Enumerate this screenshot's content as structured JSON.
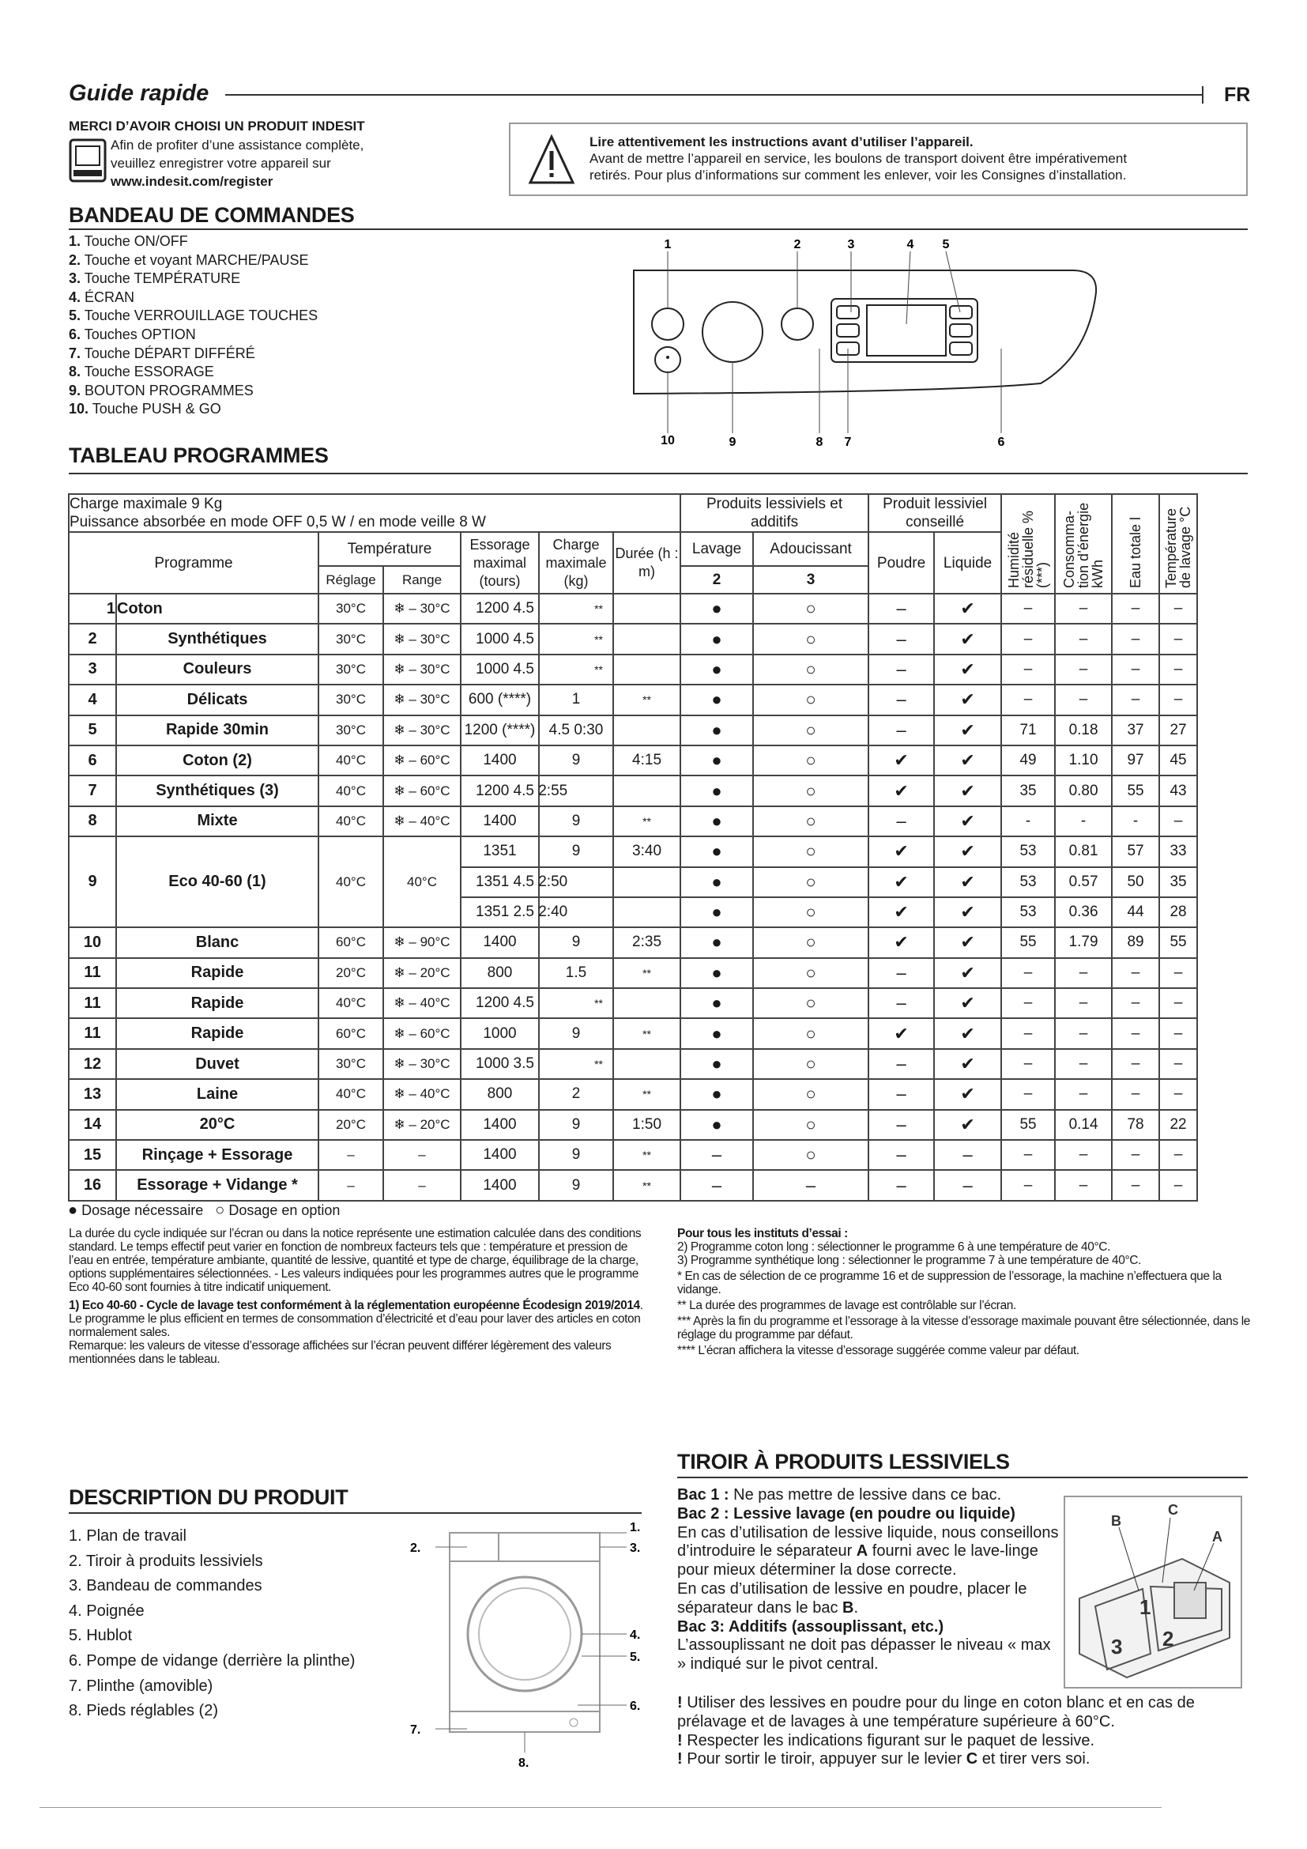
{
  "header": {
    "title": "Guide rapide",
    "lang": "FR"
  },
  "welcome": {
    "title": "MERCI D’AVOIR CHOISI UN PRODUIT INDESIT",
    "line1": "Afin de profiter d’une assistance complète,",
    "line2": "veuillez enregistrer votre appareil sur",
    "url": "www.indesit.com/register",
    "icon": "computer-monitor-icon"
  },
  "warning": {
    "icon": "warning-triangle-icon",
    "title": "Lire attentivement les instructions avant d’utiliser l’appareil.",
    "line1": "Avant de mettre l’appareil en service, les boulons de transport doivent être impérativement",
    "line2": "retirés. Pour plus d’informations sur comment les enlever, voir les Consignes d’installation."
  },
  "control_panel": {
    "title": "BANDEAU DE COMMANDES",
    "items": [
      {
        "n": "1.",
        "label": "Touche ON/OFF"
      },
      {
        "n": "2.",
        "label": "Touche et voyant MARCHE/PAUSE"
      },
      {
        "n": "3.",
        "label": "Touche TEMPÉRATURE"
      },
      {
        "n": "4.",
        "label": "ÉCRAN"
      },
      {
        "n": "5.",
        "label": "Touche    VERROUILLAGE TOUCHES"
      },
      {
        "n": "6.",
        "label": "Touches OPTION"
      },
      {
        "n": "7.",
        "label": "Touche DÉPART DIFFÉRÉ"
      },
      {
        "n": "8.",
        "label": "Touche ESSORAGE"
      },
      {
        "n": "9.",
        "label": "BOUTON PROGRAMMES"
      },
      {
        "n": "10.",
        "label": "Touche PUSH & GO"
      }
    ],
    "diagram_top": [
      "1",
      "2",
      "3",
      "4",
      "5"
    ],
    "diagram_bottom": [
      "10",
      "9",
      "8",
      "7",
      "6"
    ]
  },
  "programs": {
    "title": "TABLEAU PROGRAMMES",
    "header": {
      "charge": "Charge maximale 9 Kg",
      "power": "Puissance absorbée en mode OFF 0,5 W / en mode veille 8 W",
      "programme": "Programme",
      "temperature": "Température",
      "reglage": "Réglage",
      "range": "Range",
      "essorage": "Essorage maximal (tours)",
      "charge_max": "Charge maximale (kg)",
      "duree": "Durée (h : m)",
      "produits": "Produits lessiviels et additifs",
      "lavage": "Lavage",
      "adoucissant": "Adoucissant",
      "bac2": "2",
      "bac3": "3",
      "conseille": "Produit lessiviel conseillé",
      "poudre": "Poudre",
      "liquide": "Liquide",
      "humidite": "Humidité résiduelle % (***)",
      "energie": "Consomma-tion d’énergie kWh",
      "eau": "Eau totale l",
      "temp_lavage": "Température de lavage °C"
    },
    "rows": [
      [
        "1",
        "Coton",
        "30°C",
        "❄ – 30°C",
        "1200 4.5",
        "**",
        "",
        "●",
        "○",
        "–",
        "✔",
        "–",
        "–",
        "–",
        "–"
      ],
      [
        "2",
        "Synthétiques",
        "30°C",
        "❄ – 30°C",
        "1000 4.5",
        "**",
        "",
        "●",
        "○",
        "–",
        "✔",
        "–",
        "–",
        "–",
        "–"
      ],
      [
        "3",
        "Couleurs",
        "30°C",
        "❄ – 30°C",
        "1000 4.5",
        "**",
        "",
        "●",
        "○",
        "–",
        "✔",
        "–",
        "–",
        "–",
        "–"
      ],
      [
        "4",
        "Délicats",
        "30°C",
        "❄ – 30°C",
        "600 (****)",
        "1",
        "**",
        "●",
        "○",
        "–",
        "✔",
        "–",
        "–",
        "–",
        "–"
      ],
      [
        "5",
        "Rapide 30min",
        "30°C",
        "❄ – 30°C",
        "1200 (****)",
        "4.5 0:30",
        "",
        "●",
        "○",
        "–",
        "✔",
        "71",
        "0.18",
        "37",
        "27"
      ],
      [
        "6",
        "Coton (2)",
        "40°C",
        "❄ – 60°C",
        "1400",
        "9",
        "4:15",
        "●",
        "○",
        "✔",
        "✔",
        "49",
        "1.10",
        "97",
        "45"
      ],
      [
        "7",
        "Synthétiques (3)",
        "40°C",
        "❄ – 60°C",
        "1200 4.5 2:55",
        "",
        "",
        "●",
        "○",
        "✔",
        "✔",
        "35",
        "0.80",
        "55",
        "43"
      ],
      [
        "8",
        "Mixte",
        "40°C",
        "❄ – 40°C",
        "1400",
        "9",
        "**",
        "●",
        "○",
        "–",
        "✔",
        "-",
        "-",
        "-",
        "–"
      ],
      [
        "9",
        "Eco 40-60 (1)",
        "40°C",
        "40°C",
        "1351",
        "9",
        "3:40",
        "●",
        "○",
        "✔",
        "✔",
        "53",
        "0.81",
        "57",
        "33"
      ],
      [
        "",
        "",
        "",
        "",
        "1351 4.5 2:50",
        "",
        "",
        "●",
        "○",
        "✔",
        "✔",
        "53",
        "0.57",
        "50",
        "35"
      ],
      [
        "",
        "",
        "",
        "",
        "1351 2.5 2:40",
        "",
        "",
        "●",
        "○",
        "✔",
        "✔",
        "53",
        "0.36",
        "44",
        "28"
      ],
      [
        "10",
        "Blanc",
        "60°C",
        "❄ – 90°C",
        "1400",
        "9",
        "2:35",
        "●",
        "○",
        "✔",
        "✔",
        "55",
        "1.79",
        "89",
        "55"
      ],
      [
        "11",
        "Rapide",
        "20°C",
        "❄ – 20°C",
        "800",
        "1.5",
        "**",
        "●",
        "○",
        "–",
        "✔",
        "–",
        "–",
        "–",
        "–"
      ],
      [
        "11",
        "Rapide",
        "40°C",
        "❄ – 40°C",
        "1200 4.5",
        "**",
        "",
        "●",
        "○",
        "–",
        "✔",
        "–",
        "–",
        "–",
        "–"
      ],
      [
        "11",
        "Rapide",
        "60°C",
        "❄ – 60°C",
        "1000",
        "9",
        "**",
        "●",
        "○",
        "✔",
        "✔",
        "–",
        "–",
        "–",
        "–"
      ],
      [
        "12",
        "Duvet",
        "30°C",
        "❄ – 30°C",
        "1000 3.5",
        "**",
        "",
        "●",
        "○",
        "–",
        "✔",
        "–",
        "–",
        "–",
        "–"
      ],
      [
        "13",
        "Laine",
        "40°C",
        "❄ – 40°C",
        "800",
        "2",
        "**",
        "●",
        "○",
        "–",
        "✔",
        "–",
        "–",
        "–",
        "–"
      ],
      [
        "14",
        "20°C",
        "20°C",
        "❄ – 20°C",
        "1400",
        "9",
        "1:50",
        "●",
        "○",
        "–",
        "✔",
        "55",
        "0.14",
        "78",
        "22"
      ],
      [
        "15",
        "Rinçage + Essorage",
        "–",
        "–",
        "1400",
        "9",
        "**",
        "–",
        "○",
        "–",
        "–",
        "–",
        "–",
        "–",
        "–"
      ],
      [
        "16",
        "Essorage + Vidange *",
        "–",
        "–",
        "1400",
        "9",
        "**",
        "–",
        "–",
        "–",
        "–",
        "–",
        "–",
        "–",
        "–"
      ]
    ],
    "legend": {
      "required": "Dosage nécessaire",
      "optional": "Dosage en option"
    }
  },
  "notes_left": {
    "p1": "La durée du cycle indiquée sur l’écran ou dans la notice représente une estimation calculée dans des conditions standard. Le temps effectif peut varier en fonction de nombreux facteurs tels que : température et pression de l’eau en entrée, température ambiante, quantité de lessive, quantité et type de charge, équilibrage de la charge, options supplémentaires sélectionnées. - Les valeurs indiquées pour les programmes autres que le programme Eco 40-60 sont fournies à titre indicatif uniquement.",
    "p2_bold": "1) Eco 40-60 -  Cycle de lavage test conformément à la réglementation européenne Écodesign 2019/2014",
    "p2": ". Le programme le plus efficient en termes de consommation d’électricité et d’eau pour laver des articles en coton normalement sales.",
    "p3": "Remarque: les valeurs de vitesse d’essorage affichées sur l’écran peuvent différer légèrement des valeurs mentionnées dans le tableau."
  },
  "notes_right": {
    "title": "Pour tous les instituts d’essai :",
    "n2": "2)  Programme coton long : sélectionner le programme 6 à une température de 40°C.",
    "n3": "3)  Programme synthétique long : sélectionner le programme 7 à une température de 40°C.",
    "s1": "* En cas de sélection de ce programme 16 et de suppression de l’essorage, la machine n’effectuera que la vidange.",
    "s2": "**  La durée des programmes de lavage est contrôlable sur l’écran.",
    "s3": "*** Après la fin du programme et l’essorage à la vitesse d’essorage maximale pouvant être sélectionnée, dans le réglage du programme par défaut.",
    "s4": "**** L’écran affichera la vitesse d’essorage suggérée comme valeur par défaut."
  },
  "product": {
    "title": "DESCRIPTION DU PRODUIT",
    "items": [
      "1. Plan de travail",
      "2. Tiroir à produits lessiviels",
      "3. Bandeau de commandes",
      "4. Poignée",
      "5. Hublot",
      "6. Pompe de vidange (derrière la plinthe)",
      "7. Plinthe (amovible)",
      "8. Pieds réglables (2)"
    ],
    "callouts": [
      "1.",
      "2.",
      "3.",
      "4.",
      "5.",
      "6.",
      "7.",
      "8."
    ]
  },
  "drawer": {
    "title": "TIROIR À PRODUITS LESSIVIELS",
    "bac1_b": "Bac 1 :",
    "bac1": " Ne pas mettre de lessive dans ce bac.",
    "bac2_b": "Bac 2 : Lessive lavage (en poudre ou liquide)",
    "bac2_1": "En cas d’utilisation de lessive liquide, nous conseillons d’introduire le séparateur ",
    "bac2_A": "A",
    "bac2_2": " fourni avec le lave-linge pour mieux déterminer la dose correcte.",
    "bac2_3": "En cas d’utilisation de lessive en poudre, placer le séparateur dans le bac ",
    "bac2_B": "B",
    "bac2_4": ".",
    "bac3_b": "Bac 3: Additifs (assouplissant, etc.)",
    "bac3": "L’assouplissant ne doit pas dépasser le niveau « max » indiqué sur le pivot central.",
    "w1": "Utiliser des lessives en poudre pour du linge en coton blanc et en cas de prélavage et de lavages à une température supérieure à 60°C.",
    "w2": "Respecter les indications figurant sur le paquet de lessive.",
    "w3a": "Pour sortir le tiroir, appuyer sur le levier ",
    "w3C": "C",
    "w3b": " et tirer vers soi.",
    "excl": "!",
    "labels": [
      "B",
      "C",
      "A",
      "1",
      "2",
      "3"
    ]
  }
}
